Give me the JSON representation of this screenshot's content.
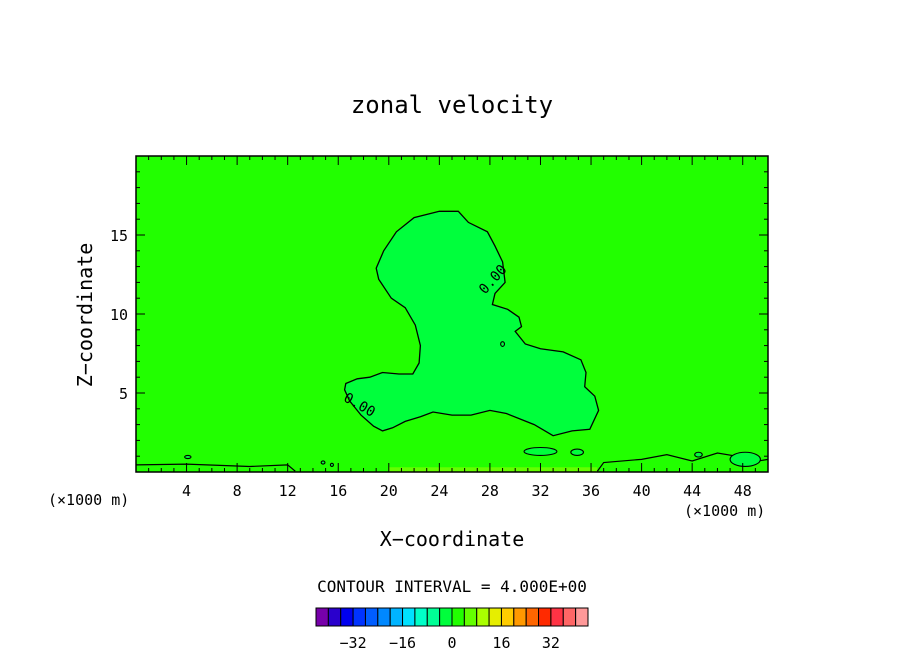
{
  "chart_data": {
    "type": "heatmap",
    "title": "zonal velocity",
    "xlabel": "X−coordinate",
    "ylabel": "Z−coordinate",
    "x_unit_label": "(×1000 m)",
    "xlim": [
      0,
      50
    ],
    "ylim": [
      0,
      20
    ],
    "x_ticks": [
      4,
      8,
      12,
      16,
      20,
      24,
      28,
      32,
      36,
      40,
      44,
      48
    ],
    "y_ticks": [
      5,
      10,
      15
    ],
    "background_field_color": "#22ff00",
    "region_color": "#00ff3c",
    "contour_label": "0.00",
    "contour_annotations": [
      {
        "text": "0.00",
        "x": 28.5,
        "z": 12
      },
      {
        "text": "0.00",
        "x": 17.5,
        "z": 4
      }
    ],
    "contour_zero_outline": [
      [
        19.2,
        12.2
      ],
      [
        19.0,
        12.9
      ],
      [
        19.6,
        14.0
      ],
      [
        20.6,
        15.2
      ],
      [
        22.0,
        16.1
      ],
      [
        24.0,
        16.5
      ],
      [
        25.5,
        16.5
      ],
      [
        26.3,
        15.8
      ],
      [
        27.8,
        15.2
      ],
      [
        28.4,
        14.3
      ],
      [
        29.0,
        13.3
      ],
      [
        29.2,
        12.0
      ],
      [
        28.4,
        11.3
      ],
      [
        28.2,
        10.6
      ],
      [
        29.4,
        10.3
      ],
      [
        30.3,
        9.8
      ],
      [
        30.5,
        9.2
      ],
      [
        30.0,
        8.9
      ],
      [
        30.8,
        8.1
      ],
      [
        32.0,
        7.8
      ],
      [
        33.8,
        7.6
      ],
      [
        35.2,
        7.1
      ],
      [
        35.6,
        6.3
      ],
      [
        35.5,
        5.4
      ],
      [
        36.3,
        4.8
      ],
      [
        36.6,
        3.9
      ],
      [
        35.9,
        2.7
      ],
      [
        34.5,
        2.6
      ],
      [
        33.0,
        2.3
      ],
      [
        31.5,
        3.0
      ],
      [
        29.3,
        3.7
      ],
      [
        28.0,
        3.9
      ],
      [
        26.5,
        3.6
      ],
      [
        25.0,
        3.6
      ],
      [
        23.5,
        3.8
      ],
      [
        22.5,
        3.5
      ],
      [
        21.3,
        3.2
      ],
      [
        20.3,
        2.8
      ],
      [
        19.5,
        2.6
      ],
      [
        18.8,
        2.9
      ],
      [
        17.8,
        3.6
      ],
      [
        16.9,
        4.5
      ],
      [
        16.5,
        5.2
      ],
      [
        16.6,
        5.6
      ],
      [
        17.5,
        5.9
      ],
      [
        18.5,
        6.0
      ],
      [
        19.5,
        6.3
      ],
      [
        20.8,
        6.2
      ],
      [
        21.9,
        6.2
      ],
      [
        22.4,
        6.9
      ],
      [
        22.5,
        8.0
      ],
      [
        22.1,
        9.3
      ],
      [
        21.3,
        10.4
      ],
      [
        20.2,
        11.0
      ],
      [
        19.2,
        12.2
      ]
    ],
    "colorbar": {
      "title": "CONTOUR INTERVAL = 4.000E+00",
      "tick_labels": [
        "−32",
        "−16",
        "0",
        "16",
        "32"
      ],
      "tick_values": [
        -32,
        -16,
        0,
        16,
        32
      ],
      "interval": 4,
      "colors": [
        "#7700aa",
        "#2a00cc",
        "#0000ee",
        "#0033ff",
        "#005dff",
        "#0088ff",
        "#00b4ff",
        "#00e1ff",
        "#00ffc8",
        "#00ff96",
        "#00ff3c",
        "#22ff00",
        "#64ff00",
        "#aaff00",
        "#e6ee00",
        "#ffcc00",
        "#ff9900",
        "#ff6600",
        "#ff2a00",
        "#ff3344",
        "#ff6666",
        "#ff9999"
      ]
    }
  }
}
